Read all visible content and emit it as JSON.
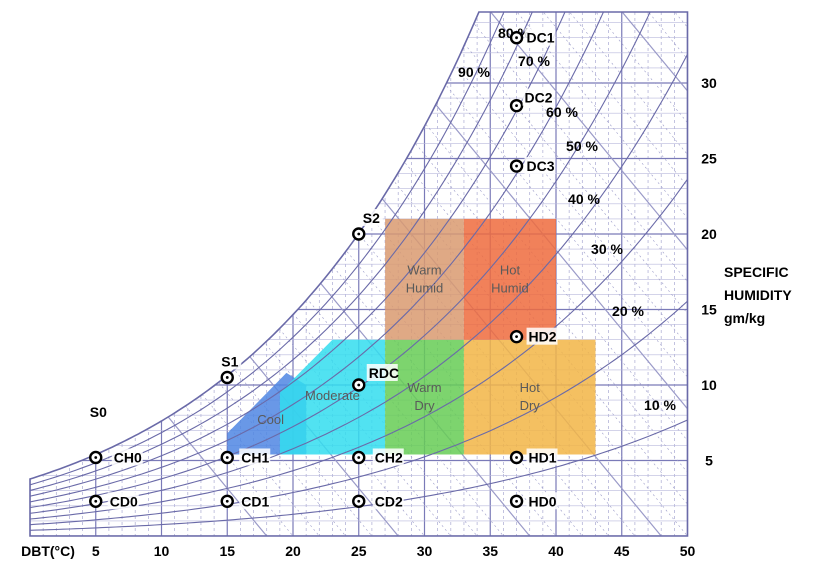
{
  "chart_data": {
    "type": "psychrometric",
    "x_axis": {
      "label": "DBT(°C)",
      "range": [
        0,
        50
      ],
      "ticks": [
        5,
        10,
        15,
        20,
        25,
        30,
        35,
        40,
        45,
        50
      ]
    },
    "y_axis": {
      "label_lines": [
        "SPECIFIC",
        "HUMIDITY",
        "gm/kg"
      ],
      "range": [
        0,
        35
      ],
      "ticks": [
        5,
        10,
        15,
        20,
        25,
        30
      ]
    },
    "rh_curves": [
      {
        "label": "10 %",
        "rh": 0.1
      },
      {
        "label": "20 %",
        "rh": 0.2
      },
      {
        "label": "30 %",
        "rh": 0.3
      },
      {
        "label": "40 %",
        "rh": 0.4
      },
      {
        "label": "50 %",
        "rh": 0.5
      },
      {
        "label": "60 %",
        "rh": 0.6
      },
      {
        "label": "70 %",
        "rh": 0.7
      },
      {
        "label": "80 %",
        "rh": 0.8
      },
      {
        "label": "90 %",
        "rh": 0.9
      }
    ],
    "zones": [
      {
        "label": "Cool",
        "color": "#4f86e3",
        "points": [
          [
            15,
            5.4
          ],
          [
            15,
            6.8
          ],
          [
            19.5,
            10.8
          ],
          [
            21,
            10
          ],
          [
            21,
            5.4
          ]
        ]
      },
      {
        "label": "Moderate",
        "color": "#33ddee",
        "points": [
          [
            19,
            5.4
          ],
          [
            19,
            9.5
          ],
          [
            23,
            13
          ],
          [
            27,
            13
          ],
          [
            27,
            5.4
          ]
        ]
      },
      {
        "label": "Warm Dry",
        "color": "#66cc55",
        "points": [
          [
            27,
            5.4
          ],
          [
            27,
            13
          ],
          [
            33,
            13
          ],
          [
            33,
            5.4
          ]
        ]
      },
      {
        "label": "Hot Dry",
        "color": "#f2b545",
        "points": [
          [
            33,
            5.4
          ],
          [
            33,
            13
          ],
          [
            43,
            13
          ],
          [
            43,
            5.4
          ]
        ]
      },
      {
        "label": "Warm Humid",
        "color": "#d99a70",
        "points": [
          [
            27,
            13
          ],
          [
            27,
            21
          ],
          [
            33,
            21
          ],
          [
            33,
            13
          ]
        ]
      },
      {
        "label": "Hot Humid",
        "color": "#ee6b3d",
        "points": [
          [
            33,
            13
          ],
          [
            33,
            21
          ],
          [
            40,
            21
          ],
          [
            40,
            13
          ]
        ]
      }
    ],
    "points": [
      {
        "label": "S0",
        "x": 5,
        "y": 6.9
      },
      {
        "label": "CH0",
        "x": 5,
        "y": 5.2
      },
      {
        "label": "CD0",
        "x": 5,
        "y": 2.3
      },
      {
        "label": "S1",
        "x": 15,
        "y": 10.5
      },
      {
        "label": "CH1",
        "x": 15,
        "y": 5.2
      },
      {
        "label": "CD1",
        "x": 15,
        "y": 2.3
      },
      {
        "label": "S2",
        "x": 25,
        "y": 20.0
      },
      {
        "label": "RDC",
        "x": 25,
        "y": 10.0
      },
      {
        "label": "CH2",
        "x": 25,
        "y": 5.2
      },
      {
        "label": "CD2",
        "x": 25,
        "y": 2.3
      },
      {
        "label": "DC1",
        "x": 37,
        "y": 33.0
      },
      {
        "label": "DC2",
        "x": 37,
        "y": 28.5
      },
      {
        "label": "DC3",
        "x": 37,
        "y": 24.5
      },
      {
        "label": "HD2",
        "x": 37,
        "y": 13.2
      },
      {
        "label": "HD1",
        "x": 37,
        "y": 5.2
      },
      {
        "label": "HD0",
        "x": 37,
        "y": 2.3
      }
    ],
    "grid": true
  }
}
